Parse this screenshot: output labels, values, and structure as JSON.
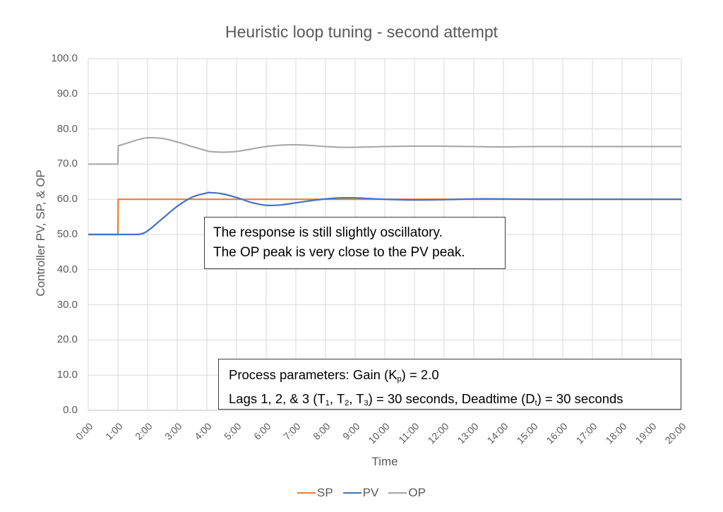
{
  "chart_data": {
    "type": "line",
    "title": "Heuristic loop tuning - second attempt",
    "xlabel": "Time",
    "ylabel": "Controller PV, SP, & OP",
    "ylim": [
      0,
      100
    ],
    "y_ticks": [
      "0.0",
      "10.0",
      "20.0",
      "30.0",
      "40.0",
      "50.0",
      "60.0",
      "70.0",
      "80.0",
      "90.0",
      "100.0"
    ],
    "x_ticks": [
      "0:00",
      "1:00",
      "2:00",
      "3:00",
      "4:00",
      "5:00",
      "6:00",
      "7:00",
      "8:00",
      "9:00",
      "10:00",
      "11:00",
      "12:00",
      "13:00",
      "14:00",
      "15:00",
      "16:00",
      "17:00",
      "18:00",
      "19:00",
      "20:00"
    ],
    "grid": true,
    "legend_position": "bottom",
    "x_minutes": [
      0,
      1,
      1.01,
      1.5,
      1.75,
      2,
      2.5,
      3,
      3.5,
      4,
      4.1,
      4.5,
      5,
      5.5,
      6,
      6.5,
      7,
      7.5,
      8,
      8.5,
      9,
      9.5,
      10,
      11,
      12,
      13,
      14,
      15,
      16,
      17,
      18,
      19,
      20
    ],
    "series": [
      {
        "name": "SP",
        "color": "#ED7D31",
        "values": [
          50,
          50,
          60,
          60,
          60,
          60,
          60,
          60,
          60,
          60,
          60,
          60,
          60,
          60,
          60,
          60,
          60,
          60,
          60,
          60,
          60,
          60,
          60,
          60,
          60,
          60,
          60,
          60,
          60,
          60,
          60,
          60,
          60
        ]
      },
      {
        "name": "PV",
        "color": "#4472C4",
        "values": [
          50,
          50,
          50,
          50,
          50.1,
          51,
          54.5,
          58,
          60.6,
          61.8,
          61.9,
          61.6,
          60.5,
          59.1,
          58.3,
          58.4,
          59,
          59.6,
          60.1,
          60.4,
          60.4,
          60.2,
          60.0,
          59.8,
          59.9,
          60.1,
          60.1,
          60.0,
          60.0,
          60.0,
          60.0,
          60.0,
          60.0
        ]
      },
      {
        "name": "OP",
        "color": "#A5A5A5",
        "values": [
          70,
          70,
          75.2,
          76.5,
          77.1,
          77.5,
          77.3,
          76.3,
          75,
          73.8,
          73.6,
          73.4,
          73.6,
          74.3,
          75.0,
          75.4,
          75.5,
          75.3,
          75.0,
          74.8,
          74.8,
          74.9,
          75.0,
          75.1,
          75.1,
          75.0,
          74.9,
          75.0,
          75.0,
          75.0,
          75.0,
          75.0,
          75.0
        ]
      }
    ],
    "annotations": [
      "The response is still slightly oscillatory.",
      "The OP peak is very close to the PV peak.",
      "Process parameters:  Gain (Kp) = 2.0",
      "Lags 1, 2, & 3 (T1, T2, T3) = 30 seconds, Deadtime (Dt) = 30 seconds"
    ]
  },
  "title": "Heuristic loop tuning - second attempt",
  "axes": {
    "xlabel": "Time",
    "ylabel": "Controller PV, SP, & OP"
  },
  "note_box": {
    "line1": "The response is still slightly oscillatory.",
    "line2": "The OP peak is very close to the PV peak."
  },
  "params_box": {
    "line1_prefix": "Process parameters:  Gain (K",
    "line1_sub": "p",
    "line1_suffix": ") = 2.0",
    "line2_a": "Lags 1, 2, & 3 (T",
    "line2_sub1": "1",
    "line2_b": ", T",
    "line2_sub2": "2",
    "line2_c": ", T",
    "line2_sub3": "3",
    "line2_d": ") = 30 seconds, Deadtime (D",
    "line2_sub4": "t",
    "line2_e": ") = 30 seconds"
  },
  "legend": [
    {
      "label": "SP",
      "color": "#ED7D31"
    },
    {
      "label": "PV",
      "color": "#4472C4"
    },
    {
      "label": "OP",
      "color": "#A5A5A5"
    }
  ]
}
